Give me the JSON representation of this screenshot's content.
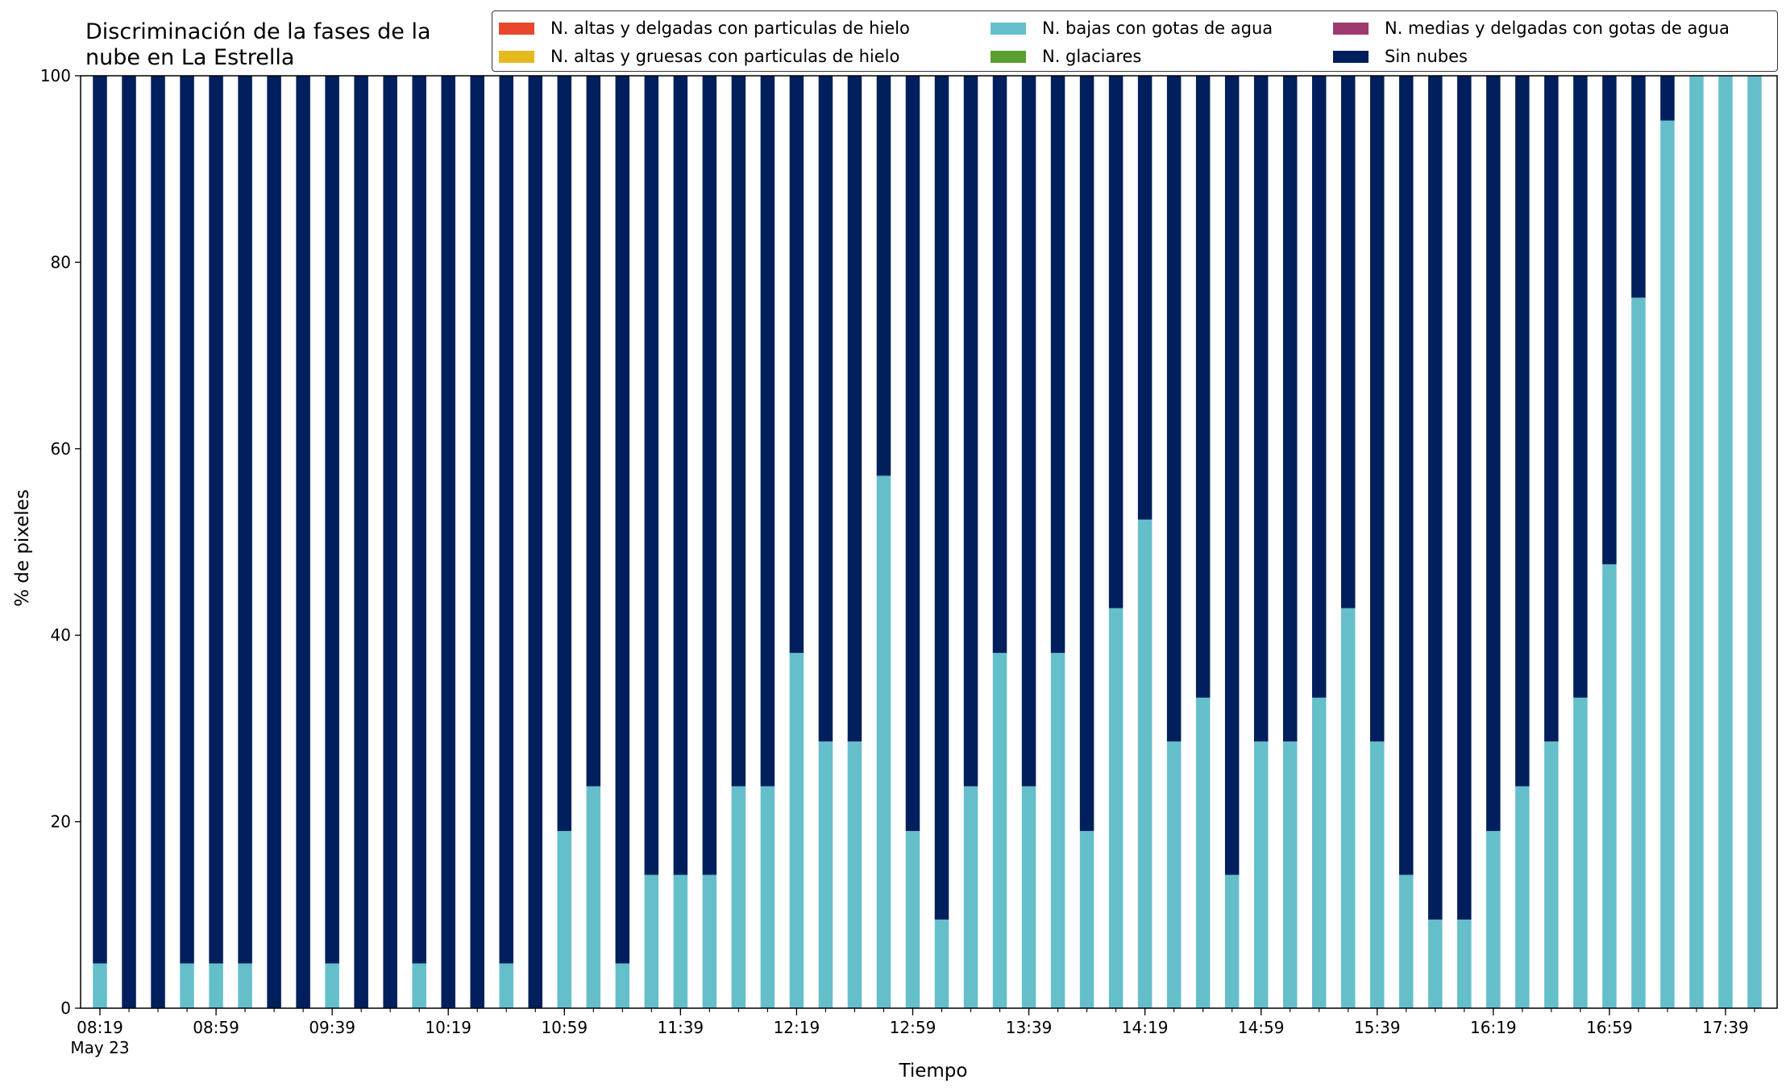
{
  "chart_data": {
    "type": "bar",
    "stacked": true,
    "title_lines": [
      "Discriminación de la fases de la",
      "nube en La Estrella"
    ],
    "xlabel": "Tiempo",
    "ylabel": "% de pixeles",
    "ylim": [
      0,
      100
    ],
    "yticks": [
      0,
      20,
      40,
      60,
      80,
      100
    ],
    "xtick_labels": [
      "08:19",
      "08:59",
      "09:39",
      "10:19",
      "10:59",
      "11:39",
      "12:19",
      "12:59",
      "13:39",
      "14:19",
      "14:59",
      "15:39",
      "16:19",
      "16:59",
      "17:39"
    ],
    "xtick_sublabel": "May 23",
    "categories": [
      "08:19",
      "08:29",
      "08:39",
      "08:49",
      "08:59",
      "09:09",
      "09:19",
      "09:29",
      "09:39",
      "09:49",
      "09:59",
      "10:09",
      "10:19",
      "10:29",
      "10:39",
      "10:49",
      "10:59",
      "11:09",
      "11:19",
      "11:29",
      "11:39",
      "11:49",
      "11:59",
      "12:09",
      "12:19",
      "12:29",
      "12:39",
      "12:49",
      "12:59",
      "13:09",
      "13:19",
      "13:29",
      "13:39",
      "13:49",
      "13:59",
      "14:09",
      "14:19",
      "14:29",
      "14:39",
      "14:49",
      "14:59",
      "15:09",
      "15:19",
      "15:29",
      "15:39",
      "15:49",
      "15:59",
      "16:09",
      "16:19",
      "16:29",
      "16:39",
      "16:49",
      "16:59",
      "17:09",
      "17:19",
      "17:29",
      "17:39",
      "17:49",
      "17:59"
    ],
    "series": [
      {
        "name": "N. altas y delgadas con particulas de hielo",
        "color": "#e8472b",
        "values": [
          0,
          0,
          0,
          0,
          0,
          0,
          0,
          0,
          0,
          0,
          0,
          0,
          0,
          0,
          0,
          0,
          0,
          0,
          0,
          0,
          0,
          0,
          0,
          0,
          0,
          0,
          0,
          0,
          0,
          0,
          0,
          0,
          0,
          0,
          0,
          0,
          0,
          0,
          0,
          0,
          0,
          0,
          0,
          0,
          0,
          0,
          0,
          0,
          0,
          0,
          0,
          0,
          0,
          0,
          0,
          0,
          0,
          0,
          0
        ]
      },
      {
        "name": "N. altas y gruesas con particulas de hielo",
        "color": "#e6b91e",
        "values": [
          0,
          0,
          0,
          0,
          0,
          0,
          0,
          0,
          0,
          0,
          0,
          0,
          0,
          0,
          0,
          0,
          0,
          0,
          0,
          0,
          0,
          0,
          0,
          0,
          0,
          0,
          0,
          0,
          0,
          0,
          0,
          0,
          0,
          0,
          0,
          0,
          0,
          0,
          0,
          0,
          0,
          0,
          0,
          0,
          0,
          0,
          0,
          0,
          0,
          0,
          0,
          0,
          0,
          0,
          0,
          0,
          0,
          0,
          0
        ]
      },
      {
        "name": "N. bajas con gotas de agua",
        "color": "#65bfca",
        "values": [
          4.8,
          0,
          0,
          4.8,
          4.8,
          4.8,
          0,
          0,
          4.8,
          0,
          0,
          4.8,
          0,
          0,
          4.8,
          0,
          19,
          23.8,
          4.8,
          14.3,
          14.3,
          14.3,
          23.8,
          23.8,
          38.1,
          28.6,
          28.6,
          57.1,
          19,
          9.5,
          23.8,
          38.1,
          23.8,
          38.1,
          19,
          42.9,
          52.4,
          28.6,
          33.3,
          14.3,
          28.6,
          28.6,
          33.3,
          42.9,
          28.6,
          14.3,
          9.5,
          9.5,
          19,
          23.8,
          28.6,
          33.3,
          47.6,
          76.2,
          95.2,
          100,
          100,
          100,
          0
        ]
      },
      {
        "name": "N. glaciares",
        "color": "#5a9e2f",
        "values": [
          0,
          0,
          0,
          0,
          0,
          0,
          0,
          0,
          0,
          0,
          0,
          0,
          0,
          0,
          0,
          0,
          0,
          0,
          0,
          0,
          0,
          0,
          0,
          0,
          0,
          0,
          0,
          0,
          0,
          0,
          0,
          0,
          0,
          0,
          0,
          0,
          0,
          0,
          0,
          0,
          0,
          0,
          0,
          0,
          0,
          0,
          0,
          0,
          0,
          0,
          0,
          0,
          0,
          0,
          0,
          0,
          0,
          0,
          0
        ]
      },
      {
        "name": "N. medias y delgadas con gotas de agua",
        "color": "#9e3a6f",
        "values": [
          0,
          0,
          0,
          0,
          0,
          0,
          0,
          0,
          0,
          0,
          0,
          0,
          0,
          0,
          0,
          0,
          0,
          0,
          0,
          0,
          0,
          0,
          0,
          0,
          0,
          0,
          0,
          0,
          0,
          0,
          0,
          0,
          0,
          0,
          0,
          0,
          0,
          0,
          0,
          0,
          0,
          0,
          0,
          0,
          0,
          0,
          0,
          0,
          0,
          0,
          0,
          0,
          0,
          0,
          0,
          0,
          0,
          0,
          0
        ]
      },
      {
        "name": "Sin nubes",
        "color": "#001f5c",
        "values": [
          95.2,
          100,
          100,
          95.2,
          95.2,
          95.2,
          100,
          100,
          95.2,
          100,
          100,
          95.2,
          100,
          100,
          95.2,
          100,
          81,
          76.2,
          95.2,
          85.7,
          85.7,
          85.7,
          76.2,
          76.2,
          61.9,
          71.4,
          71.4,
          42.9,
          81,
          90.5,
          76.2,
          61.9,
          76.2,
          61.9,
          81,
          57.1,
          47.6,
          71.4,
          66.7,
          85.7,
          71.4,
          71.4,
          66.7,
          57.1,
          71.4,
          85.7,
          90.5,
          90.5,
          81,
          76.2,
          71.4,
          66.7,
          52.4,
          23.8,
          4.8,
          0,
          0,
          0,
          0
        ]
      }
    ],
    "legend_position": "top-right"
  }
}
